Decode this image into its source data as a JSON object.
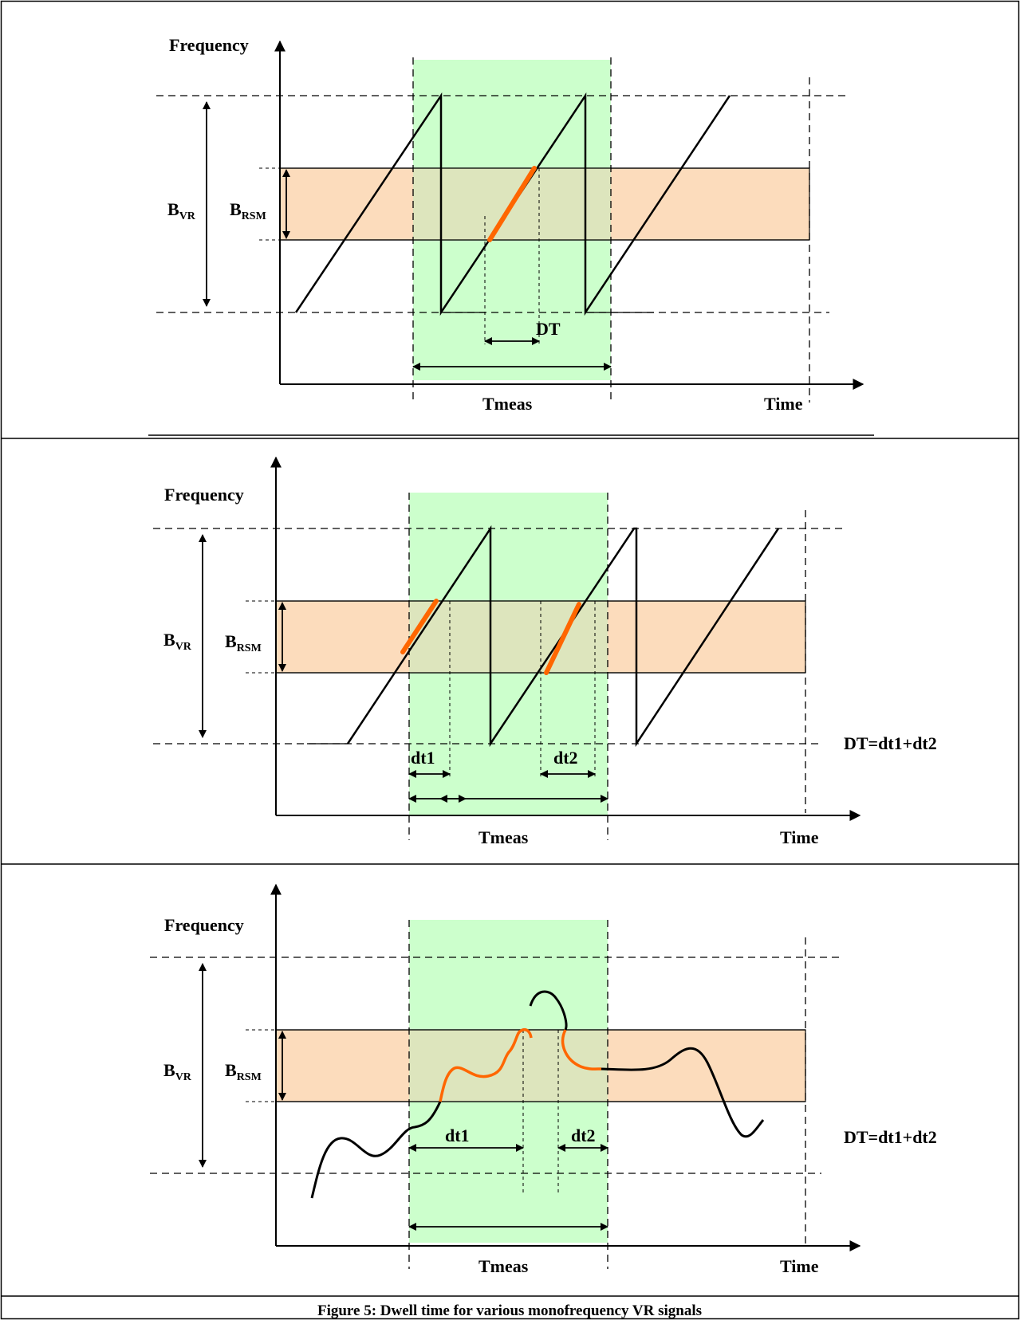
{
  "caption": "Figure 5: Dwell time for various monofrequency VR signals",
  "colors": {
    "measurement_window": "#ccffcc",
    "rsm_band": "#fcdcbc",
    "overlap": "#dde5bd",
    "in_band_trace": "#ff6600",
    "trace": "#000000"
  },
  "panels": [
    {
      "id": "sawtooth-single",
      "y_axis_label": "Frequency",
      "x_axis_label": "Time",
      "bandwidth_vr": {
        "main": "B",
        "sub": "VR"
      },
      "bandwidth_rsm": {
        "main": "B",
        "sub": "RSM"
      },
      "window_label": "Tmeas",
      "dwell_labels": [
        "DT"
      ]
    },
    {
      "id": "sawtooth-double",
      "y_axis_label": "Frequency",
      "x_axis_label": "Time",
      "bandwidth_vr": {
        "main": "B",
        "sub": "VR"
      },
      "bandwidth_rsm": {
        "main": "B",
        "sub": "RSM"
      },
      "window_label": "Tmeas",
      "dwell_labels": [
        "dt1",
        "dt2"
      ],
      "formula": "DT=dt1+dt2"
    },
    {
      "id": "random-signal",
      "y_axis_label": "Frequency",
      "x_axis_label": "Time",
      "bandwidth_vr": {
        "main": "B",
        "sub": "VR"
      },
      "bandwidth_rsm": {
        "main": "B",
        "sub": "RSM"
      },
      "window_label": "Tmeas",
      "dwell_labels": [
        "dt1",
        "dt2"
      ],
      "formula": "DT=dt1+dt2"
    }
  ]
}
